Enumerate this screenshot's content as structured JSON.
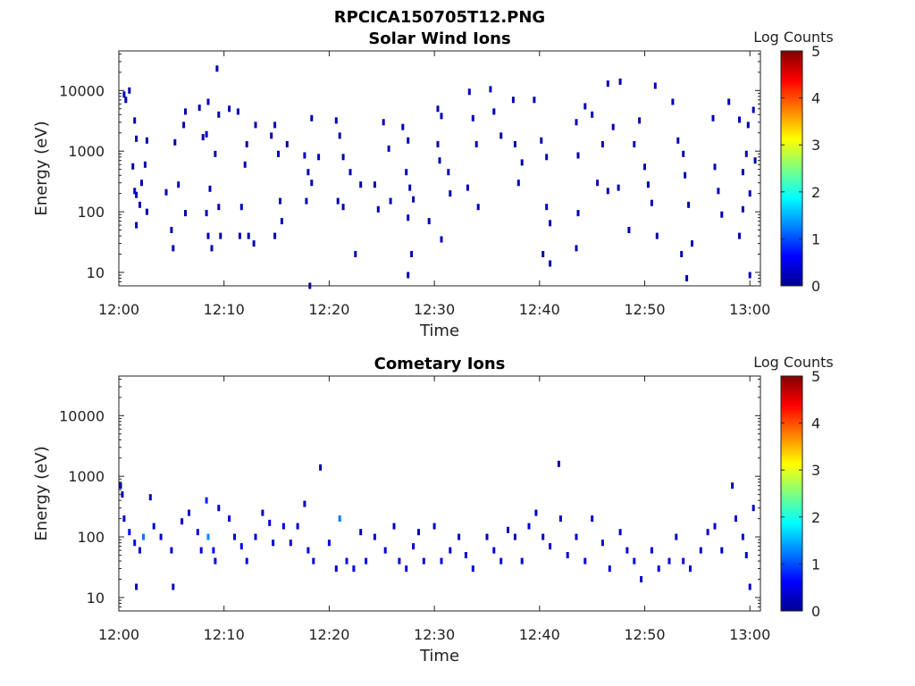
{
  "figure_title": "RPCICA150705T12.PNG",
  "colorbar": {
    "label": "Log Counts",
    "ticks": [
      "0",
      "1",
      "2",
      "3",
      "4",
      "5"
    ],
    "colormap": [
      "#00008f",
      "#0000ff",
      "#0080ff",
      "#00ffff",
      "#80ff80",
      "#ffff00",
      "#ff8000",
      "#ff0000",
      "#800000"
    ]
  },
  "chart_data": [
    {
      "type": "heatmap",
      "title": "Solar Wind Ions",
      "xlabel": "Time",
      "ylabel": "Energy (eV)",
      "xlim": [
        "12:00",
        "13:01"
      ],
      "ylim": [
        6,
        45000
      ],
      "y_scale": "log",
      "x_ticks": [
        "12:00",
        "12:10",
        "12:20",
        "12:30",
        "12:40",
        "12:50",
        "13:00"
      ],
      "y_ticks": [
        "10",
        "100",
        "1000",
        "10000"
      ],
      "clim": [
        0,
        5
      ],
      "points": [
        [
          "12:00:30",
          8600,
          0.2
        ],
        [
          "12:00:40",
          7000,
          0.2
        ],
        [
          "12:01:00",
          10000,
          0.2
        ],
        [
          "12:01:30",
          3200,
          0.2
        ],
        [
          "12:01:40",
          1600,
          0.2
        ],
        [
          "12:01:20",
          560,
          0.2
        ],
        [
          "12:01:30",
          220,
          0.2
        ],
        [
          "12:02:10",
          300,
          0.2
        ],
        [
          "12:01:40",
          190,
          0.2
        ],
        [
          "12:02:00",
          130,
          0.2
        ],
        [
          "12:01:40",
          60,
          0.2
        ],
        [
          "12:02:40",
          1500,
          0.2
        ],
        [
          "12:02:30",
          600,
          0.2
        ],
        [
          "12:02:40",
          100,
          0.2
        ],
        [
          "12:04:30",
          210,
          0.2
        ],
        [
          "12:05:00",
          50,
          0.2
        ],
        [
          "12:05:10",
          25,
          0.2
        ],
        [
          "12:05:20",
          1400,
          0.2
        ],
        [
          "12:05:40",
          280,
          0.2
        ],
        [
          "12:06:10",
          2700,
          0.2
        ],
        [
          "12:06:20",
          4500,
          0.2
        ],
        [
          "12:06:20",
          95,
          0.2
        ],
        [
          "12:07:40",
          5200,
          0.2
        ],
        [
          "12:08:00",
          1700,
          0.2
        ],
        [
          "12:08:30",
          6500,
          0.2
        ],
        [
          "12:08:20",
          1900,
          0.2
        ],
        [
          "12:08:40",
          240,
          0.2
        ],
        [
          "12:08:20",
          95,
          0.2
        ],
        [
          "12:08:30",
          40,
          0.2
        ],
        [
          "12:08:50",
          25,
          0.2
        ],
        [
          "12:09:10",
          900,
          0.2
        ],
        [
          "12:09:30",
          4000,
          0.2
        ],
        [
          "12:09:30",
          120,
          0.2
        ],
        [
          "12:09:40",
          40,
          0.2
        ],
        [
          "12:09:20",
          23000,
          0.2
        ],
        [
          "12:10:30",
          5000,
          0.2
        ],
        [
          "12:11:20",
          4500,
          0.2
        ],
        [
          "12:11:30",
          40,
          0.2
        ],
        [
          "12:11:40",
          120,
          0.2
        ],
        [
          "12:12:10",
          1300,
          0.2
        ],
        [
          "12:12:00",
          600,
          0.2
        ],
        [
          "12:12:20",
          40,
          0.2
        ],
        [
          "12:12:50",
          30,
          0.2
        ],
        [
          "12:13:00",
          2700,
          0.2
        ],
        [
          "12:14:30",
          1800,
          0.2
        ],
        [
          "12:14:50",
          2700,
          0.2
        ],
        [
          "12:15:10",
          900,
          0.2
        ],
        [
          "12:15:20",
          150,
          0.2
        ],
        [
          "12:15:30",
          70,
          0.2
        ],
        [
          "12:14:50",
          40,
          0.2
        ],
        [
          "12:16:00",
          1300,
          0.2
        ],
        [
          "12:17:40",
          850,
          0.2
        ],
        [
          "12:18:00",
          450,
          0.2
        ],
        [
          "12:18:20",
          300,
          0.2
        ],
        [
          "12:17:50",
          150,
          0.2
        ],
        [
          "12:18:20",
          3500,
          0.2
        ],
        [
          "12:19:00",
          800,
          0.2
        ],
        [
          "12:18:10",
          6,
          0.2
        ],
        [
          "12:20:40",
          3200,
          0.2
        ],
        [
          "12:21:00",
          1800,
          0.2
        ],
        [
          "12:21:20",
          800,
          0.2
        ],
        [
          "12:20:50",
          150,
          0.2
        ],
        [
          "12:21:20",
          120,
          0.2
        ],
        [
          "12:22:00",
          450,
          0.2
        ],
        [
          "12:22:30",
          20,
          0.2
        ],
        [
          "12:23:00",
          280,
          0.2
        ],
        [
          "12:24:20",
          280,
          0.2
        ],
        [
          "12:24:40",
          110,
          0.2
        ],
        [
          "12:25:10",
          3000,
          0.2
        ],
        [
          "12:25:40",
          1100,
          0.2
        ],
        [
          "12:25:50",
          150,
          0.2
        ],
        [
          "12:27:00",
          2500,
          0.2
        ],
        [
          "12:27:30",
          1500,
          0.2
        ],
        [
          "12:27:20",
          450,
          0.2
        ],
        [
          "12:27:40",
          250,
          0.2
        ],
        [
          "12:28:00",
          160,
          0.2
        ],
        [
          "12:27:30",
          80,
          0.2
        ],
        [
          "12:27:50",
          20,
          0.2
        ],
        [
          "12:27:30",
          9,
          0.2
        ],
        [
          "12:29:30",
          70,
          0.2
        ],
        [
          "12:30:20",
          5000,
          0.2
        ],
        [
          "12:30:40",
          3800,
          0.2
        ],
        [
          "12:30:20",
          1300,
          0.2
        ],
        [
          "12:30:30",
          700,
          0.2
        ],
        [
          "12:31:20",
          450,
          0.2
        ],
        [
          "12:31:30",
          200,
          0.2
        ],
        [
          "12:30:40",
          35,
          0.2
        ],
        [
          "12:33:20",
          9500,
          0.2
        ],
        [
          "12:33:40",
          3500,
          0.2
        ],
        [
          "12:34:00",
          1300,
          0.2
        ],
        [
          "12:33:10",
          250,
          0.2
        ],
        [
          "12:34:10",
          120,
          0.2
        ],
        [
          "12:35:20",
          10500,
          0.2
        ],
        [
          "12:35:40",
          4500,
          0.2
        ],
        [
          "12:36:20",
          1800,
          0.2
        ],
        [
          "12:37:30",
          7000,
          0.2
        ],
        [
          "12:37:40",
          1300,
          0.2
        ],
        [
          "12:38:20",
          650,
          0.2
        ],
        [
          "12:38:00",
          300,
          0.2
        ],
        [
          "12:39:30",
          7000,
          0.2
        ],
        [
          "12:40:10",
          1500,
          0.2
        ],
        [
          "12:40:40",
          800,
          0.2
        ],
        [
          "12:40:40",
          120,
          0.2
        ],
        [
          "12:41:00",
          65,
          0.2
        ],
        [
          "12:40:20",
          20,
          0.2
        ],
        [
          "12:41:00",
          14,
          0.2
        ],
        [
          "12:43:30",
          3000,
          0.2
        ],
        [
          "12:43:40",
          850,
          0.2
        ],
        [
          "12:43:40",
          95,
          0.2
        ],
        [
          "12:43:30",
          25,
          0.2
        ],
        [
          "12:44:20",
          5500,
          0.2
        ],
        [
          "12:45:00",
          4000,
          0.2
        ],
        [
          "12:45:30",
          300,
          0.2
        ],
        [
          "12:46:30",
          220,
          0.2
        ],
        [
          "12:46:00",
          1300,
          0.2
        ],
        [
          "12:47:00",
          2500,
          0.2
        ],
        [
          "12:46:30",
          13000,
          0.2
        ],
        [
          "12:47:40",
          14000,
          0.2
        ],
        [
          "12:47:30",
          250,
          0.2
        ],
        [
          "12:48:30",
          50,
          0.2
        ],
        [
          "12:49:00",
          1300,
          0.2
        ],
        [
          "12:49:30",
          3200,
          0.2
        ],
        [
          "12:50:00",
          550,
          0.2
        ],
        [
          "12:50:20",
          280,
          0.2
        ],
        [
          "12:50:40",
          140,
          0.2
        ],
        [
          "12:51:10",
          40,
          0.2
        ],
        [
          "12:51:00",
          12000,
          0.2
        ],
        [
          "12:52:40",
          6500,
          0.2
        ],
        [
          "12:53:10",
          1500,
          0.2
        ],
        [
          "12:53:40",
          900,
          0.2
        ],
        [
          "12:53:50",
          400,
          0.2
        ],
        [
          "12:54:10",
          130,
          0.2
        ],
        [
          "12:53:30",
          20,
          0.2
        ],
        [
          "12:54:00",
          8,
          0.2
        ],
        [
          "12:54:30",
          30,
          0.2
        ],
        [
          "12:56:30",
          3500,
          0.2
        ],
        [
          "12:56:40",
          550,
          0.2
        ],
        [
          "12:57:00",
          220,
          0.2
        ],
        [
          "12:57:20",
          90,
          0.2
        ],
        [
          "12:58:00",
          6500,
          0.2
        ],
        [
          "12:59:00",
          3300,
          0.2
        ],
        [
          "12:59:40",
          900,
          0.2
        ],
        [
          "12:59:50",
          2700,
          0.2
        ],
        [
          "12:59:20",
          450,
          0.2
        ],
        [
          "12:59:20",
          110,
          0.2
        ],
        [
          "12:59:00",
          40,
          0.2
        ],
        [
          "13:00:20",
          4800,
          0.2
        ],
        [
          "13:00:30",
          700,
          0.2
        ],
        [
          "13:00:00",
          200,
          0.2
        ],
        [
          "13:00:00",
          9,
          0.2
        ]
      ]
    },
    {
      "type": "heatmap",
      "title": "Cometary Ions",
      "xlabel": "Time",
      "ylabel": "Energy (eV)",
      "xlim": [
        "12:00",
        "13:01"
      ],
      "ylim": [
        6,
        45000
      ],
      "y_scale": "log",
      "x_ticks": [
        "12:00",
        "12:10",
        "12:20",
        "12:30",
        "12:40",
        "12:50",
        "13:00"
      ],
      "y_ticks": [
        "10",
        "100",
        "1000",
        "10000"
      ],
      "clim": [
        0,
        5
      ],
      "points": [
        [
          "12:00:10",
          700,
          0.3
        ],
        [
          "12:00:20",
          500,
          0.2
        ],
        [
          "12:00:30",
          200,
          0.4
        ],
        [
          "12:01:00",
          120,
          0.6
        ],
        [
          "12:01:30",
          80,
          0.5
        ],
        [
          "12:02:00",
          60,
          0.4
        ],
        [
          "12:01:40",
          15,
          0.2
        ],
        [
          "12:02:20",
          100,
          1.2
        ],
        [
          "12:03:00",
          450,
          0.2
        ],
        [
          "12:03:20",
          150,
          0.3
        ],
        [
          "12:04:00",
          100,
          0.4
        ],
        [
          "12:05:00",
          60,
          0.3
        ],
        [
          "12:05:10",
          15,
          0.2
        ],
        [
          "12:06:00",
          180,
          0.3
        ],
        [
          "12:06:40",
          250,
          0.4
        ],
        [
          "12:07:30",
          120,
          0.5
        ],
        [
          "12:07:50",
          60,
          0.4
        ],
        [
          "12:08:20",
          400,
          0.8
        ],
        [
          "12:08:30",
          100,
          1.3
        ],
        [
          "12:09:00",
          60,
          0.6
        ],
        [
          "12:09:10",
          40,
          0.5
        ],
        [
          "12:09:30",
          300,
          0.4
        ],
        [
          "12:10:30",
          200,
          0.4
        ],
        [
          "12:11:00",
          100,
          0.5
        ],
        [
          "12:11:40",
          70,
          0.5
        ],
        [
          "12:12:10",
          40,
          0.5
        ],
        [
          "12:13:00",
          100,
          0.4
        ],
        [
          "12:13:40",
          250,
          0.3
        ],
        [
          "12:14:20",
          170,
          0.4
        ],
        [
          "12:14:40",
          80,
          0.3
        ],
        [
          "12:15:40",
          150,
          0.4
        ],
        [
          "12:16:20",
          80,
          0.4
        ],
        [
          "12:17:00",
          150,
          0.3
        ],
        [
          "12:17:40",
          350,
          0.2
        ],
        [
          "12:18:00",
          60,
          0.5
        ],
        [
          "12:18:30",
          40,
          0.4
        ],
        [
          "12:19:10",
          1400,
          0.2
        ],
        [
          "12:20:00",
          80,
          0.4
        ],
        [
          "12:20:40",
          30,
          0.4
        ],
        [
          "12:21:00",
          200,
          1.2
        ],
        [
          "12:21:40",
          40,
          0.5
        ],
        [
          "12:22:20",
          30,
          0.5
        ],
        [
          "12:23:00",
          120,
          0.3
        ],
        [
          "12:23:30",
          40,
          0.5
        ],
        [
          "12:24:20",
          100,
          0.4
        ],
        [
          "12:25:20",
          60,
          0.4
        ],
        [
          "12:26:10",
          150,
          0.3
        ],
        [
          "12:26:40",
          40,
          0.5
        ],
        [
          "12:27:20",
          30,
          0.5
        ],
        [
          "12:28:00",
          70,
          0.4
        ],
        [
          "12:28:30",
          120,
          0.3
        ],
        [
          "12:29:00",
          40,
          0.4
        ],
        [
          "12:30:00",
          150,
          0.3
        ],
        [
          "12:30:40",
          40,
          0.5
        ],
        [
          "12:31:30",
          60,
          0.4
        ],
        [
          "12:32:20",
          100,
          0.3
        ],
        [
          "12:33:00",
          50,
          0.4
        ],
        [
          "12:33:40",
          30,
          0.5
        ],
        [
          "12:35:00",
          100,
          0.3
        ],
        [
          "12:35:40",
          60,
          0.4
        ],
        [
          "12:36:20",
          40,
          0.5
        ],
        [
          "12:37:00",
          130,
          0.3
        ],
        [
          "12:37:40",
          100,
          0.3
        ],
        [
          "12:38:20",
          40,
          0.4
        ],
        [
          "12:39:00",
          150,
          0.4
        ],
        [
          "12:39:40",
          250,
          0.3
        ],
        [
          "12:40:20",
          100,
          0.4
        ],
        [
          "12:41:00",
          70,
          0.4
        ],
        [
          "12:41:50",
          1600,
          0.2
        ],
        [
          "12:42:00",
          200,
          0.3
        ],
        [
          "12:42:40",
          50,
          0.4
        ],
        [
          "12:43:30",
          100,
          0.3
        ],
        [
          "12:44:20",
          40,
          0.5
        ],
        [
          "12:45:00",
          200,
          0.3
        ],
        [
          "12:46:00",
          80,
          0.4
        ],
        [
          "12:46:40",
          30,
          0.5
        ],
        [
          "12:47:40",
          120,
          0.3
        ],
        [
          "12:48:20",
          60,
          0.4
        ],
        [
          "12:49:00",
          40,
          0.5
        ],
        [
          "12:49:40",
          20,
          0.3
        ],
        [
          "12:50:40",
          60,
          0.4
        ],
        [
          "12:51:20",
          30,
          0.5
        ],
        [
          "12:52:20",
          40,
          0.4
        ],
        [
          "12:53:00",
          100,
          0.3
        ],
        [
          "12:53:40",
          40,
          0.5
        ],
        [
          "12:54:20",
          30,
          0.4
        ],
        [
          "12:55:20",
          60,
          0.4
        ],
        [
          "12:56:00",
          120,
          0.3
        ],
        [
          "12:56:40",
          150,
          0.4
        ],
        [
          "12:57:20",
          60,
          0.3
        ],
        [
          "12:58:20",
          700,
          0.3
        ],
        [
          "12:58:40",
          200,
          0.4
        ],
        [
          "12:59:20",
          100,
          0.5
        ],
        [
          "12:59:40",
          50,
          0.4
        ],
        [
          "13:00:00",
          15,
          0.3
        ],
        [
          "13:00:20",
          300,
          0.3
        ]
      ]
    }
  ]
}
